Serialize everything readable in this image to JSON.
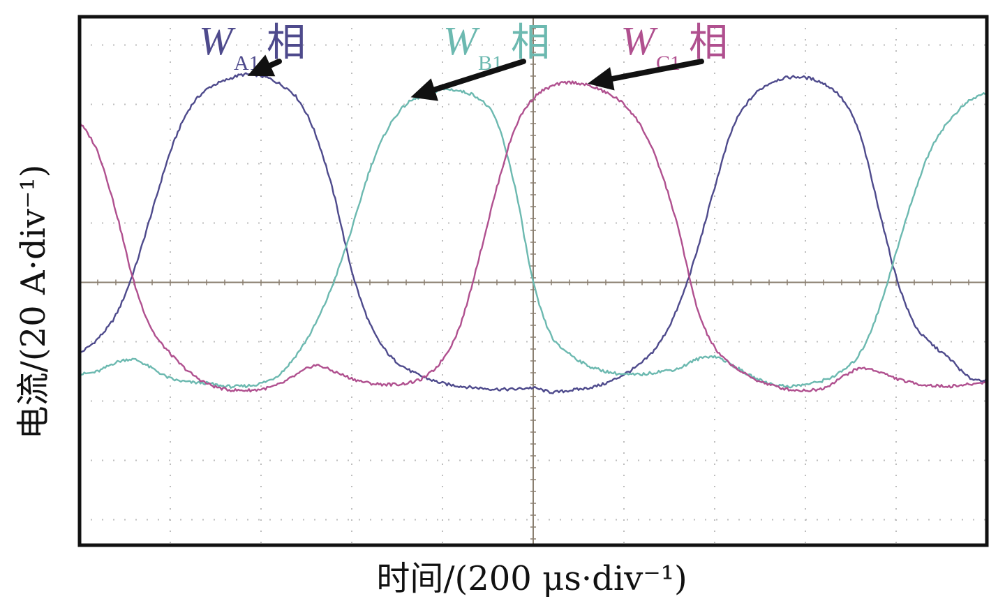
{
  "chart_data": {
    "type": "line",
    "title": "",
    "xlabel": "时间/(200 μs·div⁻¹)",
    "ylabel": "电流/(20 A·div⁻¹)",
    "x_divisions": 10,
    "y_divisions": 9,
    "xlim": [
      -5,
      5
    ],
    "ylim": [
      -4,
      4
    ],
    "ylim_comment_free": true,
    "grid": true,
    "grid_style": "dotted",
    "series": [
      {
        "name": "WA1相",
        "color": "#4e4a8c",
        "points": [
          [
            -5.0,
            -1.2
          ],
          [
            -4.8,
            -0.95
          ],
          [
            -4.6,
            -0.55
          ],
          [
            -4.4,
            0.2
          ],
          [
            -4.2,
            1.2
          ],
          [
            -4.0,
            2.2
          ],
          [
            -3.8,
            2.9
          ],
          [
            -3.6,
            3.25
          ],
          [
            -3.4,
            3.4
          ],
          [
            -3.2,
            3.5
          ],
          [
            -3.0,
            3.48
          ],
          [
            -2.8,
            3.35
          ],
          [
            -2.6,
            3.1
          ],
          [
            -2.4,
            2.5
          ],
          [
            -2.2,
            1.5
          ],
          [
            -2.0,
            0.2
          ],
          [
            -1.8,
            -0.7
          ],
          [
            -1.6,
            -1.2
          ],
          [
            -1.4,
            -1.45
          ],
          [
            -1.2,
            -1.6
          ],
          [
            -1.0,
            -1.7
          ],
          [
            -0.8,
            -1.75
          ],
          [
            -0.6,
            -1.78
          ],
          [
            -0.4,
            -1.8
          ],
          [
            -0.2,
            -1.8
          ],
          [
            0.0,
            -1.78
          ],
          [
            0.2,
            -1.85
          ],
          [
            0.4,
            -1.82
          ],
          [
            0.6,
            -1.78
          ],
          [
            0.8,
            -1.7
          ],
          [
            1.0,
            -1.55
          ],
          [
            1.2,
            -1.35
          ],
          [
            1.4,
            -1.0
          ],
          [
            1.6,
            -0.4
          ],
          [
            1.8,
            0.5
          ],
          [
            2.0,
            1.6
          ],
          [
            2.2,
            2.6
          ],
          [
            2.4,
            3.1
          ],
          [
            2.6,
            3.35
          ],
          [
            2.8,
            3.45
          ],
          [
            3.0,
            3.45
          ],
          [
            3.2,
            3.35
          ],
          [
            3.4,
            3.1
          ],
          [
            3.6,
            2.5
          ],
          [
            3.8,
            1.3
          ],
          [
            4.0,
            0.1
          ],
          [
            4.2,
            -0.7
          ],
          [
            4.4,
            -1.05
          ],
          [
            4.6,
            -1.3
          ],
          [
            4.8,
            -1.6
          ],
          [
            5.0,
            -1.65
          ]
        ]
      },
      {
        "name": "WB1相",
        "color": "#6cb9b0",
        "points": [
          [
            -5.0,
            -1.55
          ],
          [
            -4.8,
            -1.5
          ],
          [
            -4.6,
            -1.35
          ],
          [
            -4.4,
            -1.3
          ],
          [
            -4.2,
            -1.45
          ],
          [
            -4.0,
            -1.62
          ],
          [
            -3.8,
            -1.68
          ],
          [
            -3.6,
            -1.7
          ],
          [
            -3.4,
            -1.75
          ],
          [
            -3.2,
            -1.75
          ],
          [
            -3.0,
            -1.7
          ],
          [
            -2.8,
            -1.55
          ],
          [
            -2.6,
            -1.2
          ],
          [
            -2.4,
            -0.7
          ],
          [
            -2.2,
            0.0
          ],
          [
            -2.0,
            0.9
          ],
          [
            -1.8,
            1.9
          ],
          [
            -1.6,
            2.6
          ],
          [
            -1.4,
            3.0
          ],
          [
            -1.2,
            3.15
          ],
          [
            -1.0,
            3.25
          ],
          [
            -0.8,
            3.22
          ],
          [
            -0.6,
            3.1
          ],
          [
            -0.4,
            2.7
          ],
          [
            -0.2,
            1.6
          ],
          [
            0.0,
            0.0
          ],
          [
            0.2,
            -0.9
          ],
          [
            0.4,
            -1.2
          ],
          [
            0.6,
            -1.4
          ],
          [
            0.8,
            -1.5
          ],
          [
            1.0,
            -1.55
          ],
          [
            1.2,
            -1.55
          ],
          [
            1.4,
            -1.5
          ],
          [
            1.6,
            -1.45
          ],
          [
            1.8,
            -1.3
          ],
          [
            2.0,
            -1.25
          ],
          [
            2.2,
            -1.4
          ],
          [
            2.4,
            -1.58
          ],
          [
            2.6,
            -1.7
          ],
          [
            2.8,
            -1.75
          ],
          [
            3.0,
            -1.72
          ],
          [
            3.2,
            -1.65
          ],
          [
            3.4,
            -1.5
          ],
          [
            3.6,
            -1.2
          ],
          [
            3.8,
            -0.5
          ],
          [
            4.0,
            0.5
          ],
          [
            4.2,
            1.5
          ],
          [
            4.4,
            2.3
          ],
          [
            4.6,
            2.75
          ],
          [
            4.8,
            3.05
          ],
          [
            5.0,
            3.2
          ]
        ]
      },
      {
        "name": "WC1相",
        "color": "#b0508f",
        "points": [
          [
            -5.0,
            2.7
          ],
          [
            -4.8,
            2.2
          ],
          [
            -4.6,
            1.2
          ],
          [
            -4.4,
            0.0
          ],
          [
            -4.2,
            -0.8
          ],
          [
            -4.0,
            -1.2
          ],
          [
            -3.8,
            -1.5
          ],
          [
            -3.6,
            -1.7
          ],
          [
            -3.4,
            -1.8
          ],
          [
            -3.2,
            -1.82
          ],
          [
            -3.0,
            -1.8
          ],
          [
            -2.8,
            -1.72
          ],
          [
            -2.6,
            -1.55
          ],
          [
            -2.4,
            -1.4
          ],
          [
            -2.2,
            -1.5
          ],
          [
            -2.0,
            -1.62
          ],
          [
            -1.8,
            -1.7
          ],
          [
            -1.6,
            -1.72
          ],
          [
            -1.4,
            -1.7
          ],
          [
            -1.2,
            -1.6
          ],
          [
            -1.0,
            -1.3
          ],
          [
            -0.8,
            -0.7
          ],
          [
            -0.6,
            0.4
          ],
          [
            -0.4,
            1.6
          ],
          [
            -0.2,
            2.6
          ],
          [
            0.0,
            3.1
          ],
          [
            0.2,
            3.3
          ],
          [
            0.4,
            3.37
          ],
          [
            0.6,
            3.32
          ],
          [
            0.8,
            3.2
          ],
          [
            1.0,
            3.0
          ],
          [
            1.2,
            2.6
          ],
          [
            1.4,
            1.9
          ],
          [
            1.6,
            0.9
          ],
          [
            1.8,
            -0.4
          ],
          [
            2.0,
            -1.1
          ],
          [
            2.2,
            -1.4
          ],
          [
            2.4,
            -1.6
          ],
          [
            2.6,
            -1.72
          ],
          [
            2.8,
            -1.8
          ],
          [
            3.0,
            -1.82
          ],
          [
            3.2,
            -1.78
          ],
          [
            3.4,
            -1.6
          ],
          [
            3.6,
            -1.45
          ],
          [
            3.8,
            -1.5
          ],
          [
            4.0,
            -1.62
          ],
          [
            4.2,
            -1.7
          ],
          [
            4.4,
            -1.74
          ],
          [
            4.6,
            -1.75
          ],
          [
            4.8,
            -1.72
          ],
          [
            5.0,
            -1.68
          ]
        ]
      }
    ],
    "annotations": [
      {
        "series": "WA1相",
        "letter": "W",
        "sub": "A1",
        "han": "相",
        "color": "#4e4a8c",
        "target": [
          -3.15,
          3.48
        ]
      },
      {
        "series": "WB1相",
        "letter": "W",
        "sub": "B1",
        "han": "相",
        "color": "#6cb9b0",
        "target": [
          -1.35,
          3.12
        ]
      },
      {
        "series": "WC1相",
        "letter": "W",
        "sub": "C1",
        "han": "相",
        "color": "#b0508f",
        "target": [
          0.6,
          3.35
        ]
      }
    ]
  }
}
